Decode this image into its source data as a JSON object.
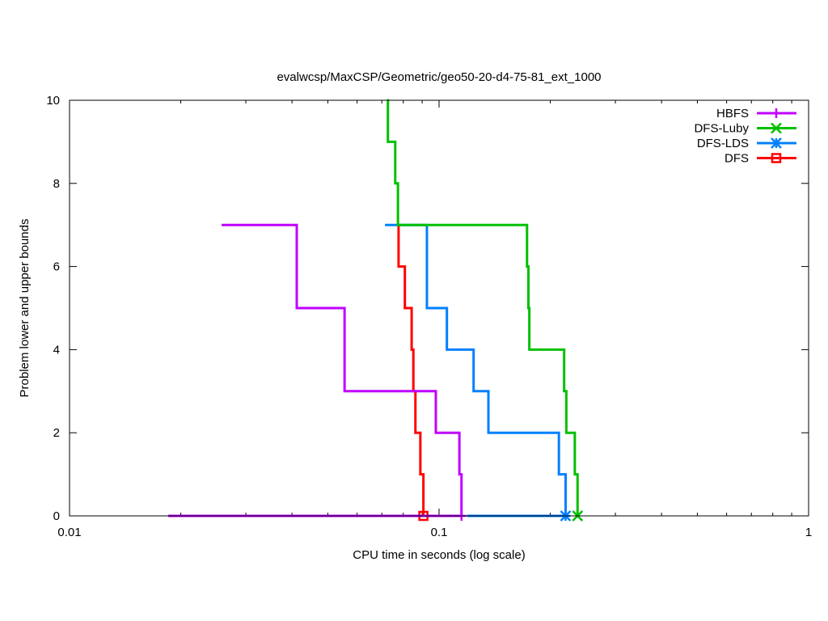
{
  "chart_data": {
    "type": "line",
    "title": "evalwcsp/MaxCSP/Geometric/geo50-20-d4-75-81_ext_1000",
    "xlabel": "CPU time in seconds (log scale)",
    "ylabel": "Problem lower and upper bounds",
    "xscale": "log",
    "xlim": [
      0.01,
      1
    ],
    "ylim": [
      0,
      10
    ],
    "xticks": [
      {
        "v": 0.01,
        "label": "0.01"
      },
      {
        "v": 0.1,
        "label": "0.1"
      },
      {
        "v": 1,
        "label": "1"
      }
    ],
    "yticks": [
      {
        "v": 0,
        "label": "0"
      },
      {
        "v": 2,
        "label": "2"
      },
      {
        "v": 4,
        "label": "4"
      },
      {
        "v": 6,
        "label": "6"
      },
      {
        "v": 8,
        "label": "8"
      },
      {
        "v": 10,
        "label": "10"
      }
    ],
    "legend_position": "top-right",
    "series": [
      {
        "name": "HBFS",
        "color": "#c000ff",
        "marker": "plus",
        "upper": [
          [
            0.0258,
            7
          ],
          [
            0.0412,
            5
          ],
          [
            0.0555,
            3
          ],
          [
            0.098,
            2
          ],
          [
            0.1135,
            1
          ],
          [
            0.115,
            0
          ]
        ],
        "lower": [
          [
            0.0185,
            0
          ],
          [
            0.115,
            0
          ]
        ]
      },
      {
        "name": "DFS-Luby",
        "color": "#00c000",
        "marker": "cross",
        "upper": [
          [
            0.0724,
            10
          ],
          [
            0.0727,
            9
          ],
          [
            0.0761,
            8
          ],
          [
            0.0774,
            7
          ],
          [
            0.173,
            6
          ],
          [
            0.1745,
            5
          ],
          [
            0.1755,
            4
          ],
          [
            0.218,
            3
          ],
          [
            0.221,
            2
          ],
          [
            0.233,
            1
          ],
          [
            0.237,
            0
          ]
        ],
        "lower": [
          [
            0.237,
            0
          ],
          [
            0.237,
            0
          ]
        ]
      },
      {
        "name": "DFS-LDS",
        "color": "#0080ff",
        "marker": "star",
        "upper": [
          [
            0.0714,
            7
          ],
          [
            0.0927,
            5
          ],
          [
            0.105,
            4
          ],
          [
            0.124,
            3
          ],
          [
            0.136,
            2
          ],
          [
            0.211,
            1
          ],
          [
            0.22,
            0
          ]
        ],
        "lower": [
          [
            0.119,
            0
          ],
          [
            0.22,
            0
          ]
        ]
      },
      {
        "name": "DFS",
        "color": "#ff0000",
        "marker": "square",
        "upper": [
          [
            0.0774,
            7
          ],
          [
            0.0777,
            6
          ],
          [
            0.0808,
            5
          ],
          [
            0.0843,
            4
          ],
          [
            0.0852,
            3
          ],
          [
            0.0863,
            2
          ],
          [
            0.089,
            1
          ],
          [
            0.0907,
            0
          ]
        ],
        "lower": [
          [
            0.069,
            0
          ],
          [
            0.0907,
            0
          ]
        ]
      }
    ]
  }
}
